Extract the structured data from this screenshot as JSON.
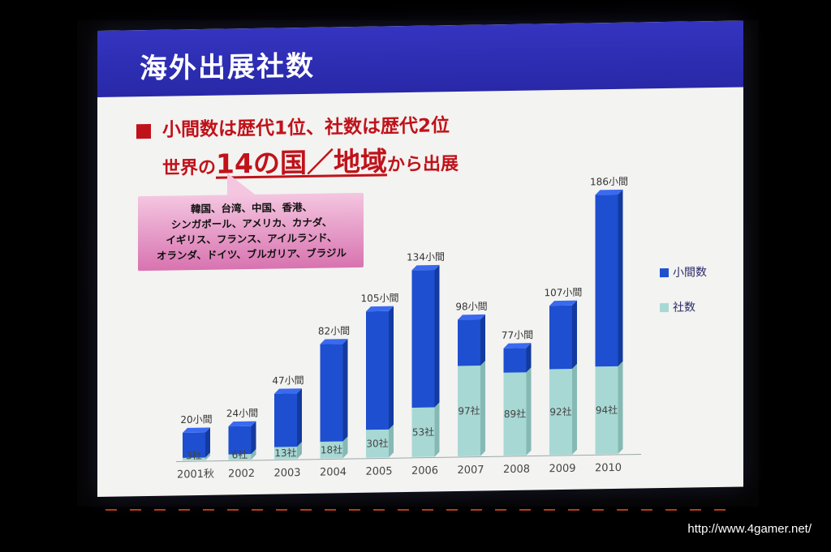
{
  "slide": {
    "title": "海外出展社数",
    "bullet_line1": "小間数は歴代1位、社数は歴代2位",
    "bullet_line2_pre": "世界の",
    "bullet_line2_big": "14の国／地域",
    "bullet_line2_post": "から出展",
    "callout_lines": [
      "韓国、台湾、中国、香港、",
      "シンガポール、アメリカ、カナダ、",
      "イギリス、フランス、アイルランド、",
      "オランダ、ドイツ、ブルガリア、ブラジル"
    ]
  },
  "watermark": "http://www.4gamer.net/",
  "colors": {
    "booths": "#1d4fd0",
    "companies": "#a8d8d4",
    "accent_red": "#c0121a",
    "title_bar": "#2e2eb4"
  },
  "chart_data": {
    "type": "bar",
    "stacked": true,
    "categories": [
      "2001秋",
      "2002",
      "2003",
      "2004",
      "2005",
      "2006",
      "2007",
      "2008",
      "2009",
      "2010"
    ],
    "series": [
      {
        "name": "小間数",
        "values": [
          20,
          24,
          47,
          82,
          105,
          134,
          98,
          77,
          107,
          186
        ],
        "labels": [
          "20小間",
          "24小間",
          "47小間",
          "82小間",
          "105小間",
          "134小間",
          "98小間",
          "77小間",
          "107小間",
          "186小間"
        ]
      },
      {
        "name": "社数",
        "values": [
          3,
          6,
          13,
          18,
          30,
          53,
          97,
          89,
          92,
          94
        ],
        "labels": [
          "3社",
          "6社",
          "13社",
          "18社",
          "30社",
          "53社",
          "97社",
          "89社",
          "92社",
          "94社"
        ]
      }
    ],
    "legend_position": "right",
    "grid": false
  }
}
